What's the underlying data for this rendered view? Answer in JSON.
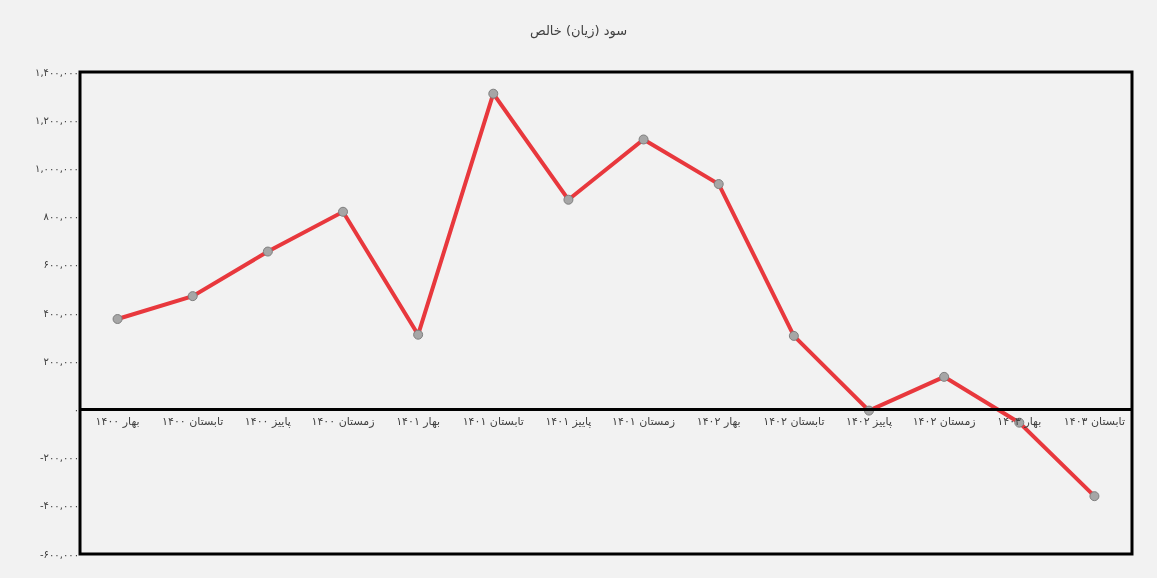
{
  "chart_data": {
    "type": "line",
    "title": "سود (زیان) خالص",
    "categories": [
      "بهار ۱۴۰۰",
      "تابستان ۱۴۰۰",
      "پاییز ۱۴۰۰",
      "زمستان ۱۴۰۰",
      "بهار ۱۴۰۱",
      "تابستان ۱۴۰۱",
      "پاییز ۱۴۰۱",
      "زمستان ۱۴۰۱",
      "بهار ۱۴۰۲",
      "تابستان ۱۴۰۲",
      "پاییز ۱۴۰۲",
      "زمستان ۱۴۰۲",
      "بهار ۱۴۰۳",
      "تابستان ۱۴۰۳"
    ],
    "series": [
      {
        "color": "#e8383d",
        "values": [
          375000,
          470000,
          655000,
          820000,
          310000,
          1310000,
          870000,
          1120000,
          935000,
          305000,
          -5000,
          135000,
          -55000,
          -360000
        ]
      }
    ],
    "ylim": [
      -600000,
      1400000
    ],
    "yticks": [
      {
        "value": -600000,
        "label": "-۶۰۰,۰۰۰"
      },
      {
        "value": -400000,
        "label": "-۴۰۰,۰۰۰"
      },
      {
        "value": -200000,
        "label": "-۲۰۰,۰۰۰"
      },
      {
        "value": 0,
        "label": "۰"
      },
      {
        "value": 200000,
        "label": "۲۰۰,۰۰۰"
      },
      {
        "value": 400000,
        "label": "۴۰۰,۰۰۰"
      },
      {
        "value": 600000,
        "label": "۶۰۰,۰۰۰"
      },
      {
        "value": 800000,
        "label": "۸۰۰,۰۰۰"
      },
      {
        "value": 1000000,
        "label": "۱,۰۰۰,۰۰۰"
      },
      {
        "value": 1200000,
        "label": "۱,۲۰۰,۰۰۰"
      },
      {
        "value": 1400000,
        "label": "۱,۴۰۰,۰۰۰"
      }
    ],
    "grid": false,
    "marker": "circle",
    "line_style": "solid"
  }
}
